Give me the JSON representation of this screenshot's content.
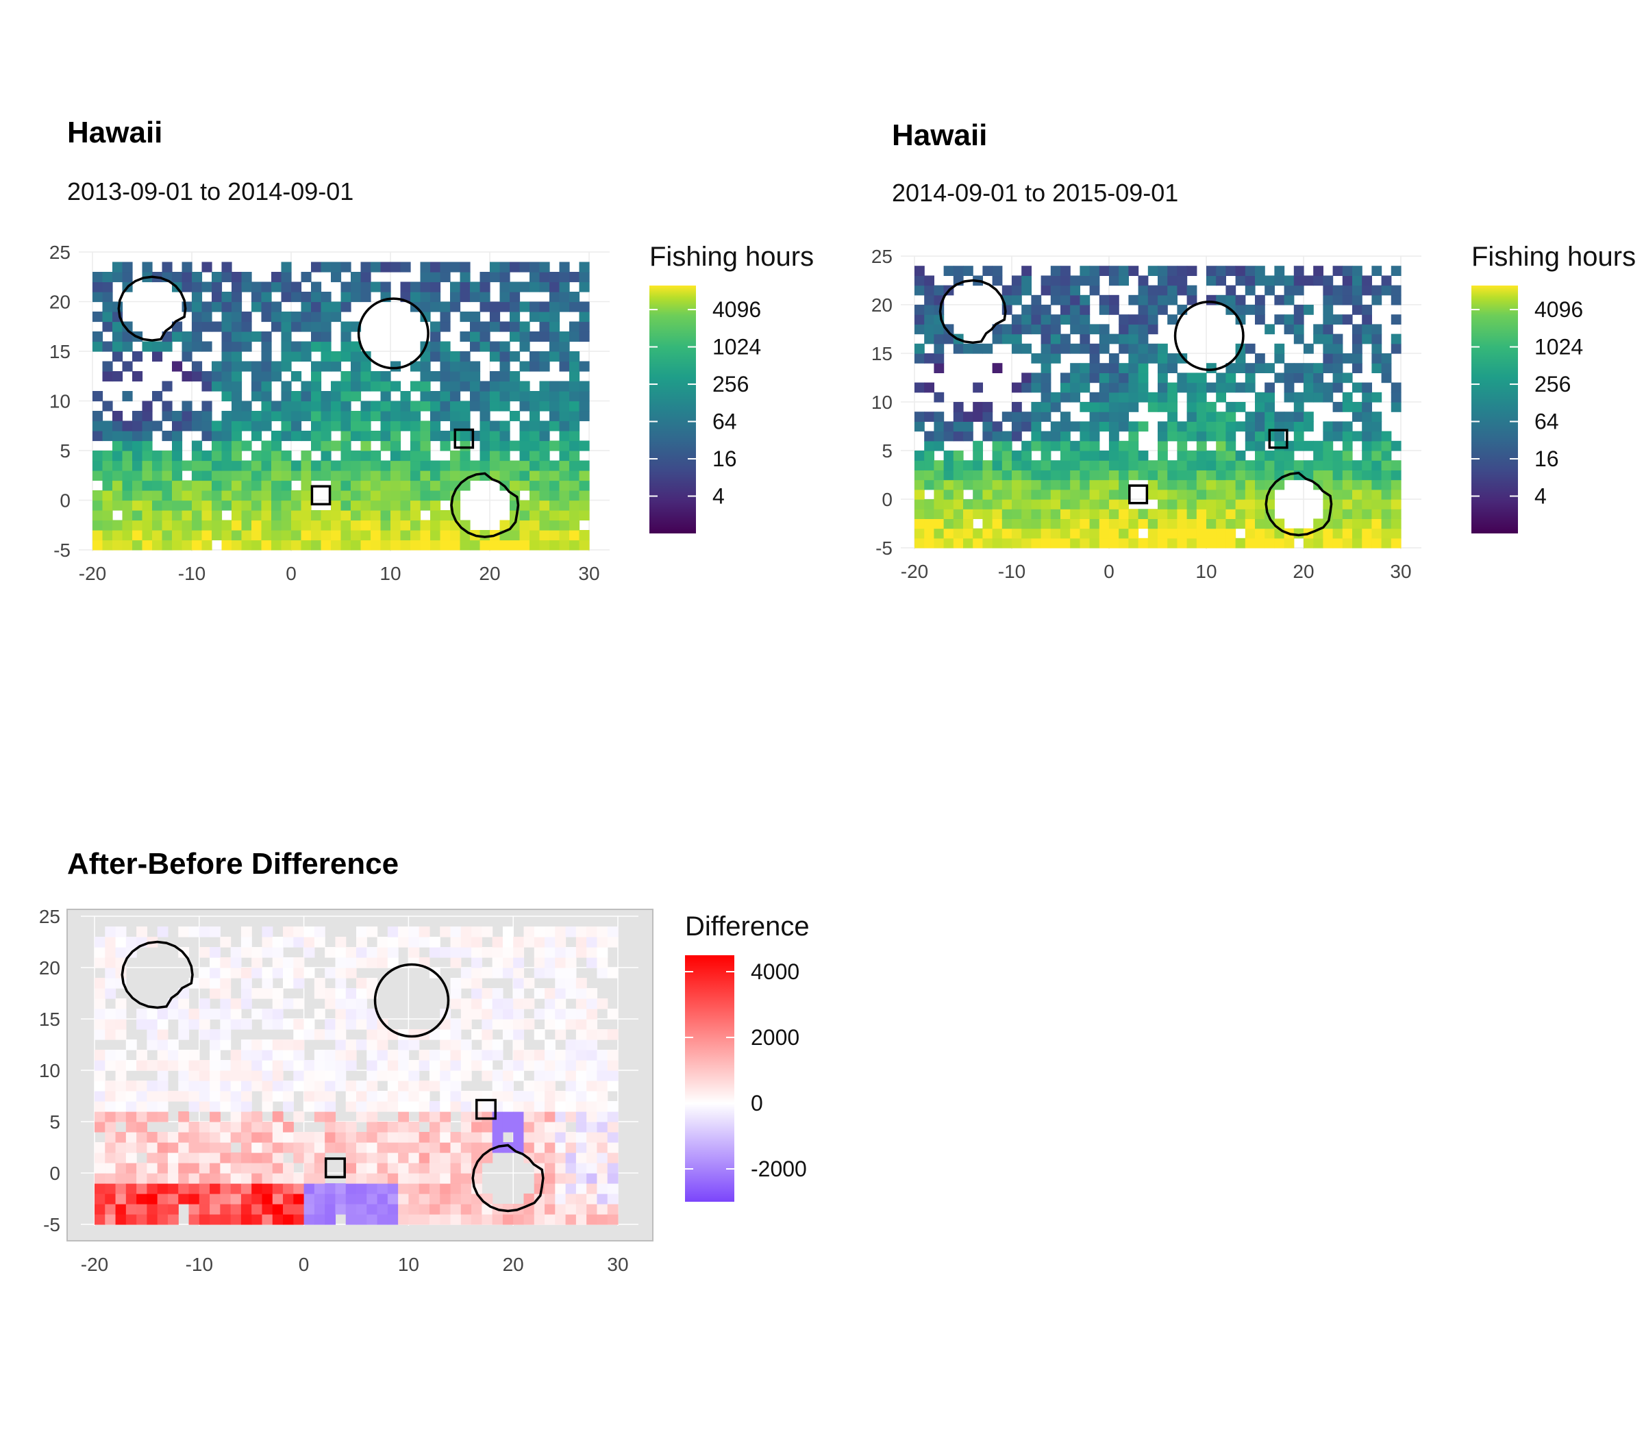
{
  "chart_data": [
    {
      "type": "heatmap",
      "panel": "before",
      "title": "Hawaii",
      "subtitle": "2013-09-01 to 2014-09-01",
      "xlabel": "",
      "ylabel": "",
      "xlim": [
        -20,
        30
      ],
      "ylim": [
        -5,
        25
      ],
      "x_ticks": [
        -20,
        -10,
        0,
        10,
        20,
        30
      ],
      "y_ticks": [
        -5,
        0,
        5,
        10,
        15,
        20,
        25
      ],
      "grid": true,
      "legend": {
        "title": "Fishing hours",
        "position": "right",
        "scale": "log2",
        "palette": "viridis",
        "breaks": [
          4,
          16,
          64,
          256,
          1024,
          4096
        ],
        "range": [
          1,
          10000
        ]
      },
      "cells_note": "gridded 1-degree cells, x -20..30, y -5..24; empty cells shown as white",
      "overlays": [
        {
          "shape": "circle",
          "center": [
            10.3,
            16.8
          ],
          "radius": 3.5
        },
        {
          "shape": "blob",
          "center": [
            -14,
            19.3
          ]
        },
        {
          "shape": "blob",
          "center": [
            19.5,
            -0.5
          ]
        },
        {
          "shape": "square",
          "center": [
            17.4,
            6.2
          ],
          "size": 1.8
        },
        {
          "shape": "square",
          "center": [
            3.0,
            0.5
          ],
          "size": 1.8
        }
      ]
    },
    {
      "type": "heatmap",
      "panel": "after",
      "title": "Hawaii",
      "subtitle": "2014-09-01 to 2015-09-01",
      "xlabel": "",
      "ylabel": "",
      "xlim": [
        -20,
        30
      ],
      "ylim": [
        -5,
        25
      ],
      "x_ticks": [
        -20,
        -10,
        0,
        10,
        20,
        30
      ],
      "y_ticks": [
        -5,
        0,
        5,
        10,
        15,
        20,
        25
      ],
      "grid": true,
      "legend": {
        "title": "Fishing hours",
        "position": "right",
        "scale": "log2",
        "palette": "viridis",
        "breaks": [
          4,
          16,
          64,
          256,
          1024,
          4096
        ],
        "range": [
          1,
          10000
        ]
      },
      "overlays": [
        {
          "shape": "circle",
          "center": [
            10.3,
            16.8
          ],
          "radius": 3.5
        },
        {
          "shape": "blob",
          "center": [
            -14,
            19.3
          ]
        },
        {
          "shape": "blob",
          "center": [
            19.5,
            -0.5
          ]
        },
        {
          "shape": "square",
          "center": [
            17.4,
            6.2
          ],
          "size": 1.8
        },
        {
          "shape": "square",
          "center": [
            3.0,
            0.5
          ],
          "size": 1.8
        }
      ]
    },
    {
      "type": "heatmap",
      "panel": "difference",
      "title": "After-Before Difference",
      "xlabel": "",
      "ylabel": "",
      "xlim": [
        -20,
        30
      ],
      "ylim": [
        -5,
        25
      ],
      "x_ticks": [
        -20,
        -10,
        0,
        10,
        20,
        30
      ],
      "y_ticks": [
        -5,
        0,
        5,
        10,
        15,
        20,
        25
      ],
      "grid": true,
      "background": "#e3e3e3",
      "legend": {
        "title": "Difference",
        "position": "right",
        "scale": "linear",
        "palette": "blue-white-red",
        "breaks": [
          -2000,
          0,
          2000,
          4000
        ],
        "range": [
          -3000,
          4500
        ]
      },
      "overlays": [
        {
          "shape": "circle",
          "center": [
            10.3,
            16.8
          ],
          "radius": 3.5
        },
        {
          "shape": "blob",
          "center": [
            -14,
            19.3
          ]
        },
        {
          "shape": "blob",
          "center": [
            19.5,
            -0.5
          ]
        },
        {
          "shape": "square",
          "center": [
            17.4,
            6.2
          ],
          "size": 1.8
        },
        {
          "shape": "square",
          "center": [
            3.0,
            0.5
          ],
          "size": 1.8
        }
      ]
    }
  ]
}
